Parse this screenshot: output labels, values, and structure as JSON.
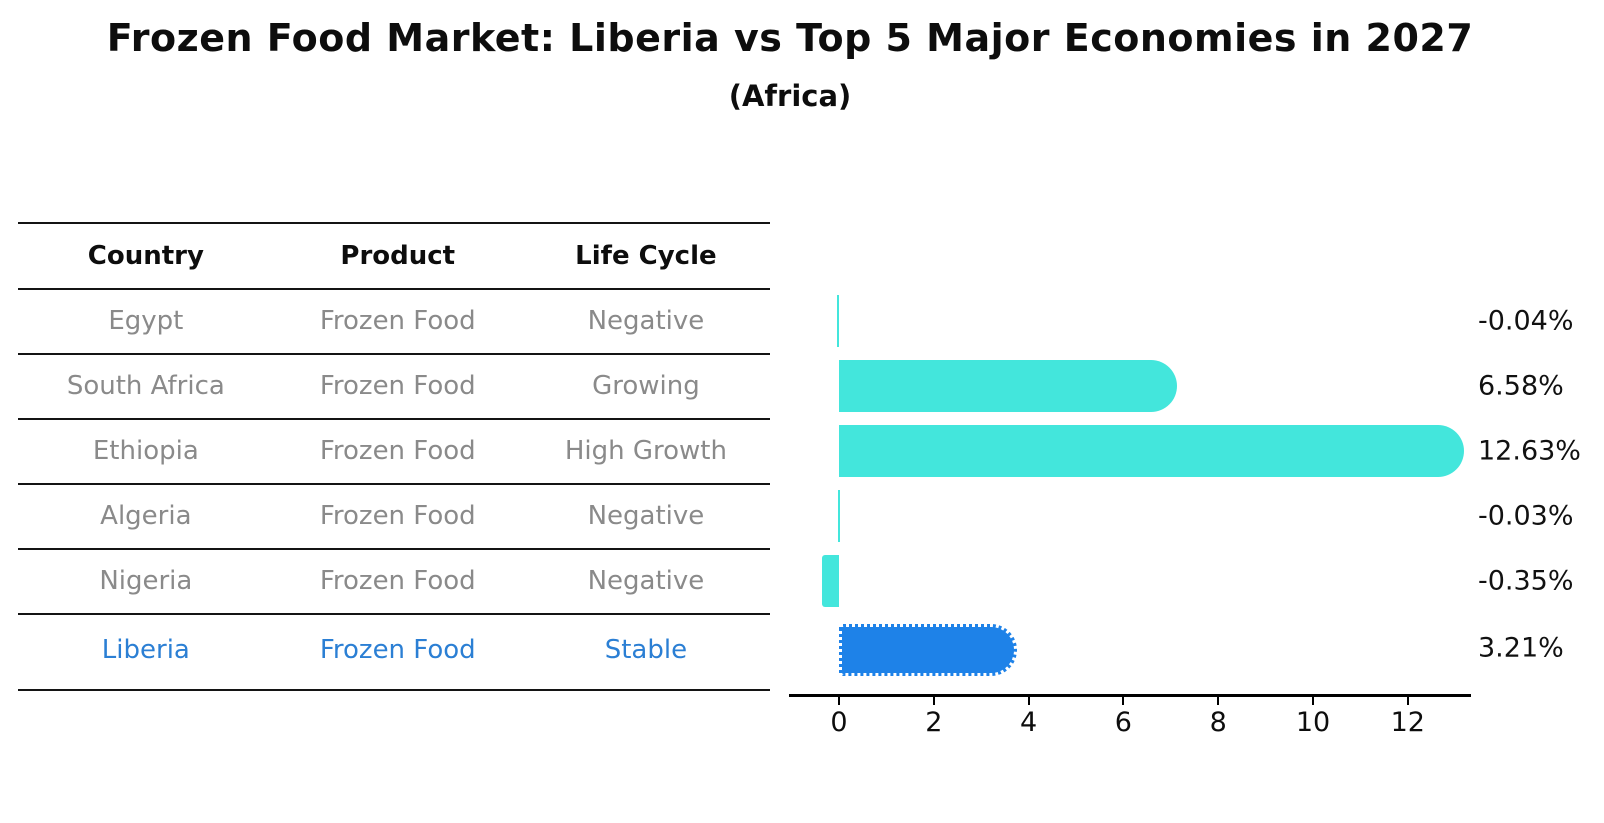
{
  "title": "Frozen Food Market: Liberia vs Top 5 Major Economies in 2027",
  "subtitle": "(Africa)",
  "table": {
    "headers": [
      "Country",
      "Product",
      "Life Cycle"
    ],
    "rows": [
      {
        "country": "Egypt",
        "product": "Frozen Food",
        "life_cycle": "Negative",
        "highlight": false
      },
      {
        "country": "South Africa",
        "product": "Frozen Food",
        "life_cycle": "Growing",
        "highlight": false
      },
      {
        "country": "Ethiopia",
        "product": "Frozen Food",
        "life_cycle": "High Growth",
        "highlight": false
      },
      {
        "country": "Algeria",
        "product": "Frozen Food",
        "life_cycle": "Negative",
        "highlight": false
      },
      {
        "country": "Nigeria",
        "product": "Frozen Food",
        "life_cycle": "Negative",
        "highlight": false
      },
      {
        "country": "Liberia",
        "product": "Frozen Food",
        "life_cycle": "Stable",
        "highlight": true
      }
    ]
  },
  "chart_data": {
    "type": "bar",
    "orientation": "horizontal",
    "title": "Frozen Food Market: Liberia vs Top 5 Major Economies in 2027",
    "subtitle": "(Africa)",
    "categories": [
      "Egypt",
      "South Africa",
      "Ethiopia",
      "Algeria",
      "Nigeria",
      "Liberia"
    ],
    "values": [
      -0.04,
      6.58,
      12.63,
      -0.03,
      -0.35,
      3.21
    ],
    "value_labels": [
      "-0.04%",
      "6.58%",
      "12.63%",
      "-0.03%",
      "-0.35%",
      "3.21%"
    ],
    "unit": "%",
    "xticks": [
      0,
      2,
      4,
      6,
      8,
      10,
      12
    ],
    "xlim": [
      -1.05,
      13.35
    ],
    "grid": false,
    "legend": "none",
    "bar_color": "#43e6dc",
    "highlight_color": "#1e82e8",
    "highlight_index": 5,
    "highlight_text_color": "#2b7fd4"
  }
}
